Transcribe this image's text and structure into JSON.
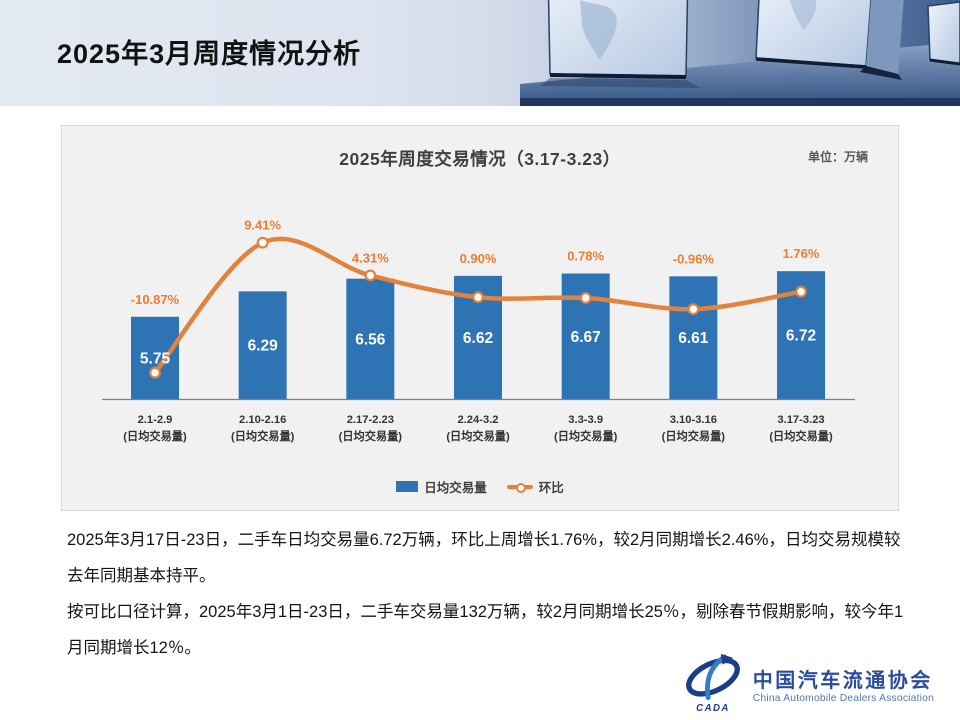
{
  "header": {
    "title": "2025年3月周度情况分析"
  },
  "chart": {
    "title": "2025年周度交易情况（3.17-3.23）",
    "unit_label": "单位：万辆",
    "legend": {
      "bar": "日均交易量",
      "line": "环比"
    }
  },
  "chart_data": {
    "type": "bar",
    "subtype": "bar+line combo",
    "title": "2025年周度交易情况（3.17-3.23）",
    "unit": "万辆",
    "categories": [
      "2.1-2.9",
      "2.10-2.16",
      "2.17-2.23",
      "2.24-3.2",
      "3.3-3.9",
      "3.10-3.16",
      "3.17-3.23"
    ],
    "category_sublabel": "(日均交易量)",
    "series": [
      {
        "name": "日均交易量",
        "type": "bar",
        "values": [
          5.75,
          6.29,
          6.56,
          6.62,
          6.67,
          6.61,
          6.72
        ],
        "labels": [
          "5.75",
          "6.29",
          "6.56",
          "6.62",
          "6.67",
          "6.61",
          "6.72"
        ]
      },
      {
        "name": "环比",
        "type": "line",
        "values": [
          -10.87,
          9.41,
          4.31,
          0.9,
          0.78,
          -0.96,
          1.76
        ],
        "labels": [
          "-10.87%",
          "9.41%",
          "4.31%",
          "0.90%",
          "0.78%",
          "-0.96%",
          "1.76%"
        ]
      }
    ],
    "value_axis_hidden": true,
    "grid": false,
    "legend_position": "bottom-center",
    "colors": {
      "bar": "#2E74B5",
      "line": "#E2823C",
      "line_label": "#ED7D31",
      "bar_label": "#FFFFFF"
    }
  },
  "body": {
    "p1": "2025年3月17日-23日，二手车日均交易量6.72万辆，环比上周增长1.76%，较2月同期增长2.46%，日均交易规模较去年同期基本持平。",
    "p2": "按可比口径计算，2025年3月1日-23日，二手车交易量132万辆，较2月同期增长25％，剔除春节假期影响，较今年1月同期增长12％。"
  },
  "logo": {
    "name_cn": "中国汽车流通协会",
    "name_en": "China Automobile Dealers Association",
    "acronym": "CADA"
  }
}
